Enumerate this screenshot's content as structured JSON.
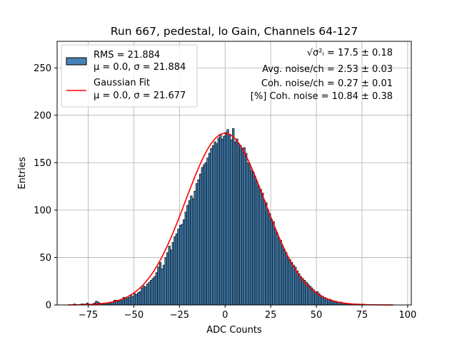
{
  "chart_data": {
    "type": "bar",
    "title": "Run 667, pedestal, lo Gain, Channels 64-127",
    "xlabel": "ADC Counts",
    "ylabel": "Entries",
    "xlim": [
      -92,
      102
    ],
    "ylim": [
      0,
      278
    ],
    "xticks": [
      -75,
      -50,
      -25,
      0,
      25,
      50,
      75,
      100
    ],
    "yticks": [
      0,
      50,
      100,
      150,
      200,
      250
    ],
    "grid": true,
    "legend_position": "top-left",
    "colors": {
      "bar_fill": "#4682b4",
      "bar_edge": "#000000",
      "fit_line": "#ff0000",
      "grid": "#b0b0b0"
    },
    "histogram": {
      "name": "RMS = 21.884",
      "stats": "μ = 0.0, σ = 21.884",
      "bin_width": 1,
      "bin_start": -85,
      "counts": [
        0,
        0,
        1,
        0,
        0,
        0,
        1,
        1,
        0,
        2,
        1,
        0,
        1,
        2,
        4,
        3,
        2,
        1,
        1,
        2,
        1,
        2,
        3,
        3,
        5,
        5,
        4,
        5,
        6,
        8,
        8,
        7,
        8,
        10,
        9,
        12,
        11,
        13,
        14,
        18,
        20,
        19,
        22,
        24,
        26,
        28,
        30,
        34,
        40,
        45,
        38,
        42,
        50,
        55,
        62,
        58,
        66,
        72,
        75,
        80,
        84,
        85,
        90,
        98,
        105,
        110,
        115,
        112,
        120,
        128,
        132,
        138,
        145,
        148,
        150,
        155,
        160,
        165,
        168,
        172,
        170,
        176,
        180,
        175,
        178,
        182,
        185,
        180,
        174,
        186,
        172,
        175,
        170,
        168,
        165,
        166,
        160,
        150,
        148,
        142,
        140,
        135,
        130,
        125,
        122,
        118,
        110,
        108,
        100,
        96,
        90,
        88,
        80,
        76,
        70,
        68,
        62,
        58,
        55,
        50,
        48,
        45,
        42,
        40,
        36,
        33,
        30,
        28,
        26,
        24,
        22,
        20,
        18,
        16,
        14,
        14,
        12,
        10,
        9,
        8,
        7,
        6,
        6,
        5,
        4,
        4,
        3,
        3,
        3,
        2,
        2,
        2,
        1,
        1,
        1,
        1,
        1,
        0,
        1,
        0,
        1,
        0,
        0,
        0,
        0,
        0,
        0,
        0,
        0,
        0,
        0,
        0,
        0,
        0,
        0,
        0,
        0
      ]
    },
    "fit": {
      "name": "Gaussian Fit",
      "stats": "μ = 0.0, σ = 21.677",
      "mu": 0.0,
      "sigma": 21.677,
      "amplitude": 181,
      "x_range": [
        -86,
        92
      ]
    },
    "annotations": {
      "sqrt_label": "√σ²ᵢ",
      "sqrt_value": " = 17.5 ± 0.18",
      "avg_noise": "Avg. noise/ch = 2.53 ± 0.03",
      "coh_noise": "Coh. noise/ch = 0.27 ± 0.01",
      "pct_coh_noise": "[%] Coh. noise = 10.84 ± 0.38"
    }
  }
}
